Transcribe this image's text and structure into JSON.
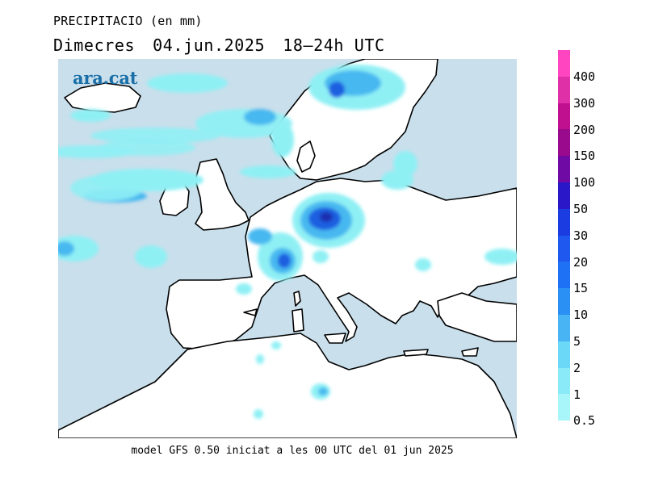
{
  "header": {
    "variable": "PRECIPITACIO (en mm)",
    "day": "Dimecres",
    "date": "04.jun.2025",
    "period": "18–24h UTC"
  },
  "logo": {
    "text": "ara.cat"
  },
  "footer": {
    "model_note": "model GFS 0.50 iniciat a les 00 UTC del 01 jun 2025"
  },
  "colors": {
    "sea": "#c9dfec",
    "land": "#ffffff",
    "coastline": "#000000",
    "precip_light": "#8ff0f4",
    "precip_mid": "#46b8f0",
    "precip_heavy": "#1f5ee0",
    "precip_extreme": "#1a2fb0"
  },
  "legend": {
    "unit": "mm",
    "levels": [
      {
        "label": "400",
        "color": "#ff46c0"
      },
      {
        "label": "300",
        "color": "#e030a8"
      },
      {
        "label": "200",
        "color": "#c01090"
      },
      {
        "label": "150",
        "color": "#9a0a8c"
      },
      {
        "label": "100",
        "color": "#6f0aa4"
      },
      {
        "label": "50",
        "color": "#2a18c8"
      },
      {
        "label": "30",
        "color": "#1a3ce0"
      },
      {
        "label": "20",
        "color": "#1e58ee"
      },
      {
        "label": "15",
        "color": "#1e70f4"
      },
      {
        "label": "10",
        "color": "#2b90f4"
      },
      {
        "label": "5",
        "color": "#48b4f4"
      },
      {
        "label": "2",
        "color": "#6ad8f6"
      },
      {
        "label": "1",
        "color": "#8aeaf8"
      },
      {
        "label": "0.5",
        "color": "#a8f6fa"
      }
    ]
  }
}
